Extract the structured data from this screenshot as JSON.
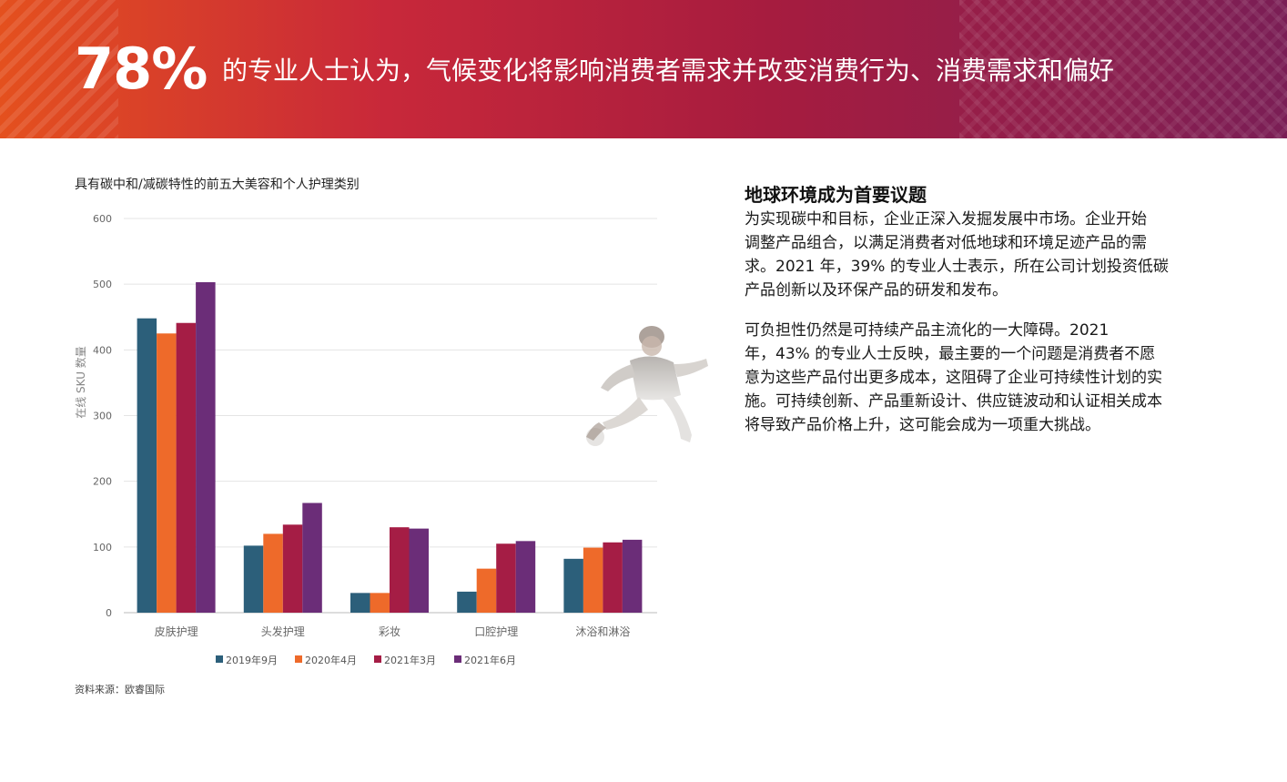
{
  "banner": {
    "percent": "78%",
    "text": "的专业人士认为，气候变化将影响消费者需求并改变消费行为、消费需求和偏好"
  },
  "chart_title": "具有碳中和/减碳特性的前五大美容和个人护理类别",
  "source": "资料来源：欧睿国际",
  "chart_data": {
    "type": "bar",
    "categories": [
      "皮肤护理",
      "头发护理",
      "彩妆",
      "口腔护理",
      "沐浴和淋浴"
    ],
    "series": [
      {
        "name": "2019年9月",
        "color": "#2c5f7a",
        "values": [
          448,
          102,
          30,
          32,
          82
        ]
      },
      {
        "name": "2020年4月",
        "color": "#ee6a2a",
        "values": [
          425,
          120,
          30,
          67,
          99
        ]
      },
      {
        "name": "2021年3月",
        "color": "#a51d45",
        "values": [
          441,
          134,
          130,
          105,
          107
        ]
      },
      {
        "name": "2021年6月",
        "color": "#6b2d78",
        "values": [
          503,
          167,
          128,
          109,
          111
        ]
      }
    ],
    "ylabel": "在线 SKU 数量",
    "ylim": [
      0,
      600
    ],
    "yticks": [
      "0",
      "100",
      "200",
      "300",
      "400",
      "500",
      "600"
    ],
    "grid": true,
    "legend": "bottom"
  },
  "right": {
    "heading": "地球环境成为首要议题",
    "para1": [
      "为实现碳中和目标，企业正深入发掘发展中市场。企业开始",
      "调整产品组合，以满足消费者对低地球和环境足迹产品的需",
      "求。2021 年，39% 的专业人士表示，所在公司计划投资低碳",
      "产品创新以及环保产品的研发和发布。"
    ],
    "para2": [
      "可负担性仍然是可持续产品主流化的一大障碍。2021",
      "年，43% 的专业人士反映，最主要的一个问题是消费者不愿",
      "意为这些产品付出更多成本，这阻碍了企业可持续性计划的实",
      "施。可持续创新、产品重新设计、供应链波动和认证相关成本",
      "将导致产品价格上升，这可能会成为一项重大挑战。"
    ]
  }
}
